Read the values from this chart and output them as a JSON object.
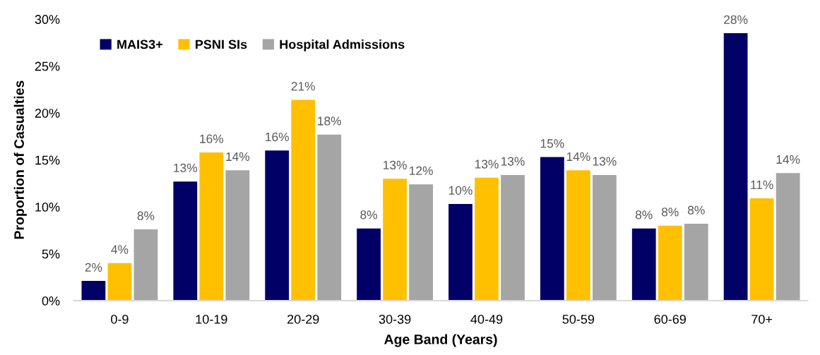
{
  "chart_data": {
    "type": "bar",
    "xlabel": "Age Band (Years)",
    "ylabel": "Proportion of Casualties",
    "categories": [
      "0-9",
      "10-19",
      "20-29",
      "30-39",
      "40-49",
      "50-59",
      "60-69",
      "70+"
    ],
    "series": [
      {
        "name": "MAIS3+",
        "color": "#000066",
        "values": [
          2.1,
          12.7,
          16.0,
          7.7,
          10.3,
          15.3,
          7.7,
          28.5
        ],
        "value_labels": [
          "2%",
          "13%",
          "16%",
          "8%",
          "10%",
          "15%",
          "8%",
          "28%"
        ]
      },
      {
        "name": "PSNI SIs",
        "color": "#ffc000",
        "values": [
          4.0,
          15.8,
          21.4,
          13.0,
          13.1,
          13.9,
          8.0,
          10.9
        ],
        "value_labels": [
          "4%",
          "16%",
          "21%",
          "13%",
          "13%",
          "14%",
          "8%",
          "11%"
        ]
      },
      {
        "name": "Hospital Admissions",
        "color": "#a5a5a5",
        "values": [
          7.6,
          13.9,
          17.7,
          12.4,
          13.4,
          13.4,
          8.2,
          13.6
        ],
        "value_labels": [
          "8%",
          "14%",
          "18%",
          "12%",
          "13%",
          "13%",
          "8%",
          "14%"
        ]
      }
    ],
    "ylim": [
      0,
      30
    ],
    "yticks": [
      {
        "value": 0,
        "label": "0%"
      },
      {
        "value": 5,
        "label": "5%"
      },
      {
        "value": 10,
        "label": "10%"
      },
      {
        "value": 15,
        "label": "15%"
      },
      {
        "value": 20,
        "label": "20%"
      },
      {
        "value": 25,
        "label": "25%"
      },
      {
        "value": 30,
        "label": "30%"
      }
    ],
    "grid": false,
    "legend": "top left"
  }
}
